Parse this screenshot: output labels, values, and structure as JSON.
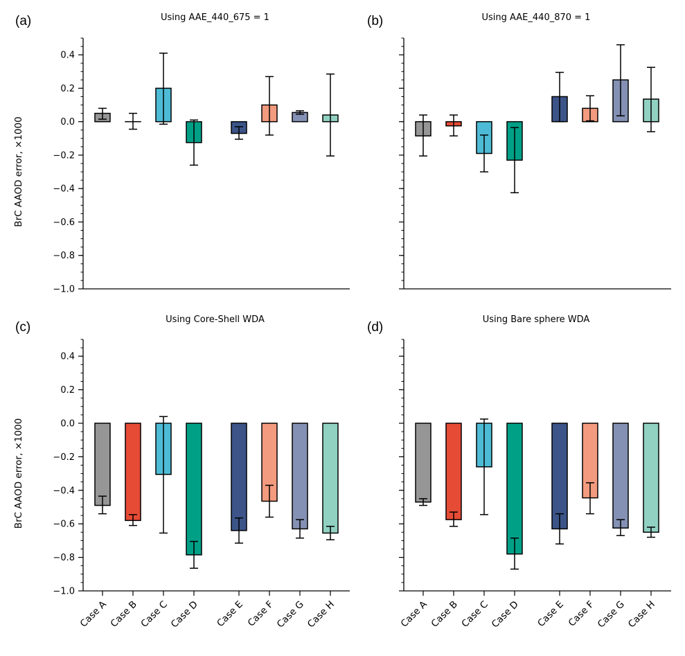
{
  "chart_data": {
    "type": "bar",
    "figure": "2x2 grid of bar charts with error bars",
    "categories": [
      "Case A",
      "Case B",
      "Case C",
      "Case D",
      "Case E",
      "Case F",
      "Case G",
      "Case H"
    ],
    "category_groups": [
      [
        "Case A",
        "Case B",
        "Case C",
        "Case D"
      ],
      [
        "Case E",
        "Case F",
        "Case G",
        "Case H"
      ]
    ],
    "colors": [
      "#969696",
      "#e64b35",
      "#4dbbd5",
      "#00a087",
      "#3c5488",
      "#f39b7f",
      "#8491b4",
      "#91d1c2"
    ],
    "ylabel": "BrC AAOD error, ×1000",
    "ylim": [
      -1.0,
      0.5
    ],
    "yticks": [
      0.4,
      0.2,
      0.0,
      -0.2,
      -0.4,
      -0.6,
      -0.8,
      -1.0
    ],
    "ytick_labels": [
      "0.4",
      "0.2",
      "0.0",
      "−0.2",
      "−0.4",
      "−0.6",
      "−0.8",
      "−1.0"
    ],
    "grid": false,
    "sharey": true,
    "panels": [
      {
        "label": "(a)",
        "title": "Using AAE_440_675 = 1",
        "show_ylabel": true,
        "show_xticklabels": false,
        "values": [
          0.05,
          0.0,
          0.2,
          -0.125,
          -0.07,
          0.1,
          0.055,
          0.04
        ],
        "err_low": [
          0.015,
          -0.045,
          -0.015,
          -0.26,
          -0.105,
          -0.08,
          0.045,
          -0.205
        ],
        "err_high": [
          0.08,
          0.05,
          0.41,
          0.01,
          -0.03,
          0.27,
          0.065,
          0.285
        ]
      },
      {
        "label": "(b)",
        "title": "Using AAE_440_870 = 1",
        "show_ylabel": false,
        "show_xticklabels": false,
        "values": [
          -0.085,
          -0.025,
          -0.19,
          -0.23,
          0.15,
          0.08,
          0.25,
          0.135
        ],
        "err_low": [
          -0.205,
          -0.085,
          -0.3,
          -0.425,
          0.0,
          0.005,
          0.035,
          -0.06
        ],
        "err_high": [
          0.04,
          0.04,
          -0.08,
          -0.035,
          0.295,
          0.155,
          0.46,
          0.325
        ]
      },
      {
        "label": "(c)",
        "title": "Using Core-Shell WDA",
        "show_ylabel": true,
        "show_xticklabels": true,
        "values": [
          -0.49,
          -0.58,
          -0.305,
          -0.785,
          -0.64,
          -0.465,
          -0.63,
          -0.655
        ],
        "err_low": [
          -0.54,
          -0.61,
          -0.655,
          -0.865,
          -0.715,
          -0.56,
          -0.685,
          -0.695
        ],
        "err_high": [
          -0.435,
          -0.545,
          0.04,
          -0.705,
          -0.565,
          -0.37,
          -0.575,
          -0.615
        ]
      },
      {
        "label": "(d)",
        "title": "Using Bare sphere WDA",
        "show_ylabel": false,
        "show_xticklabels": true,
        "values": [
          -0.47,
          -0.575,
          -0.26,
          -0.78,
          -0.63,
          -0.445,
          -0.625,
          -0.65
        ],
        "err_low": [
          -0.49,
          -0.615,
          -0.545,
          -0.87,
          -0.72,
          -0.54,
          -0.67,
          -0.68
        ],
        "err_high": [
          -0.45,
          -0.53,
          0.025,
          -0.685,
          -0.54,
          -0.355,
          -0.575,
          -0.62
        ]
      }
    ]
  }
}
